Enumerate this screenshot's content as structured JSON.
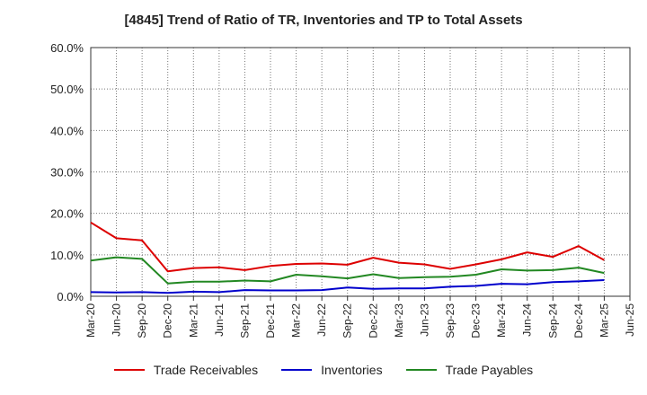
{
  "chart_data": {
    "type": "line",
    "title": "[4845]  Trend of Ratio of TR, Inventories and TP to Total Assets",
    "xlabel": "",
    "ylabel": "",
    "ylim": [
      0,
      60
    ],
    "yticks": [
      "0.0%",
      "10.0%",
      "20.0%",
      "30.0%",
      "40.0%",
      "50.0%",
      "60.0%"
    ],
    "grid": true,
    "legend_position": "bottom",
    "x_tick_labels": [
      "Mar-20",
      "Jun-20",
      "Sep-20",
      "Dec-20",
      "Mar-21",
      "Jun-21",
      "Sep-21",
      "Dec-21",
      "Mar-22",
      "Jun-22",
      "Sep-22",
      "Dec-22",
      "Mar-23",
      "Jun-23",
      "Sep-23",
      "Dec-23",
      "Mar-24",
      "Jun-24",
      "Sep-24",
      "Dec-24",
      "Mar-25",
      "Jun-25"
    ],
    "x": [
      "Mar-20",
      "Jun-20",
      "Sep-20",
      "Dec-20",
      "Mar-21",
      "Jun-21",
      "Sep-21",
      "Dec-21",
      "Mar-22",
      "Jun-22",
      "Sep-22",
      "Dec-22",
      "Mar-23",
      "Jun-23",
      "Sep-23",
      "Dec-23",
      "Mar-24",
      "Jun-24",
      "Sep-24",
      "Dec-24",
      "Mar-25"
    ],
    "series": [
      {
        "name": "Trade Receivables",
        "color": "#dd0000",
        "values": [
          17.8,
          14.0,
          13.5,
          6.0,
          6.8,
          7.0,
          6.3,
          7.3,
          7.8,
          7.9,
          7.6,
          9.3,
          8.1,
          7.7,
          6.6,
          7.7,
          8.9,
          10.6,
          9.5,
          12.1,
          8.7
        ]
      },
      {
        "name": "Inventories",
        "color": "#0000cc",
        "values": [
          1.0,
          0.9,
          1.0,
          0.8,
          1.1,
          1.0,
          1.5,
          1.4,
          1.4,
          1.5,
          2.1,
          1.8,
          1.9,
          1.9,
          2.3,
          2.5,
          3.0,
          2.9,
          3.4,
          3.6,
          3.9
        ]
      },
      {
        "name": "Trade Payables",
        "color": "#228822",
        "values": [
          8.6,
          9.4,
          9.0,
          3.1,
          3.5,
          3.5,
          3.8,
          3.6,
          5.2,
          4.8,
          4.3,
          5.3,
          4.4,
          4.6,
          4.7,
          5.2,
          6.5,
          6.2,
          6.3,
          6.9,
          5.6
        ]
      }
    ]
  }
}
